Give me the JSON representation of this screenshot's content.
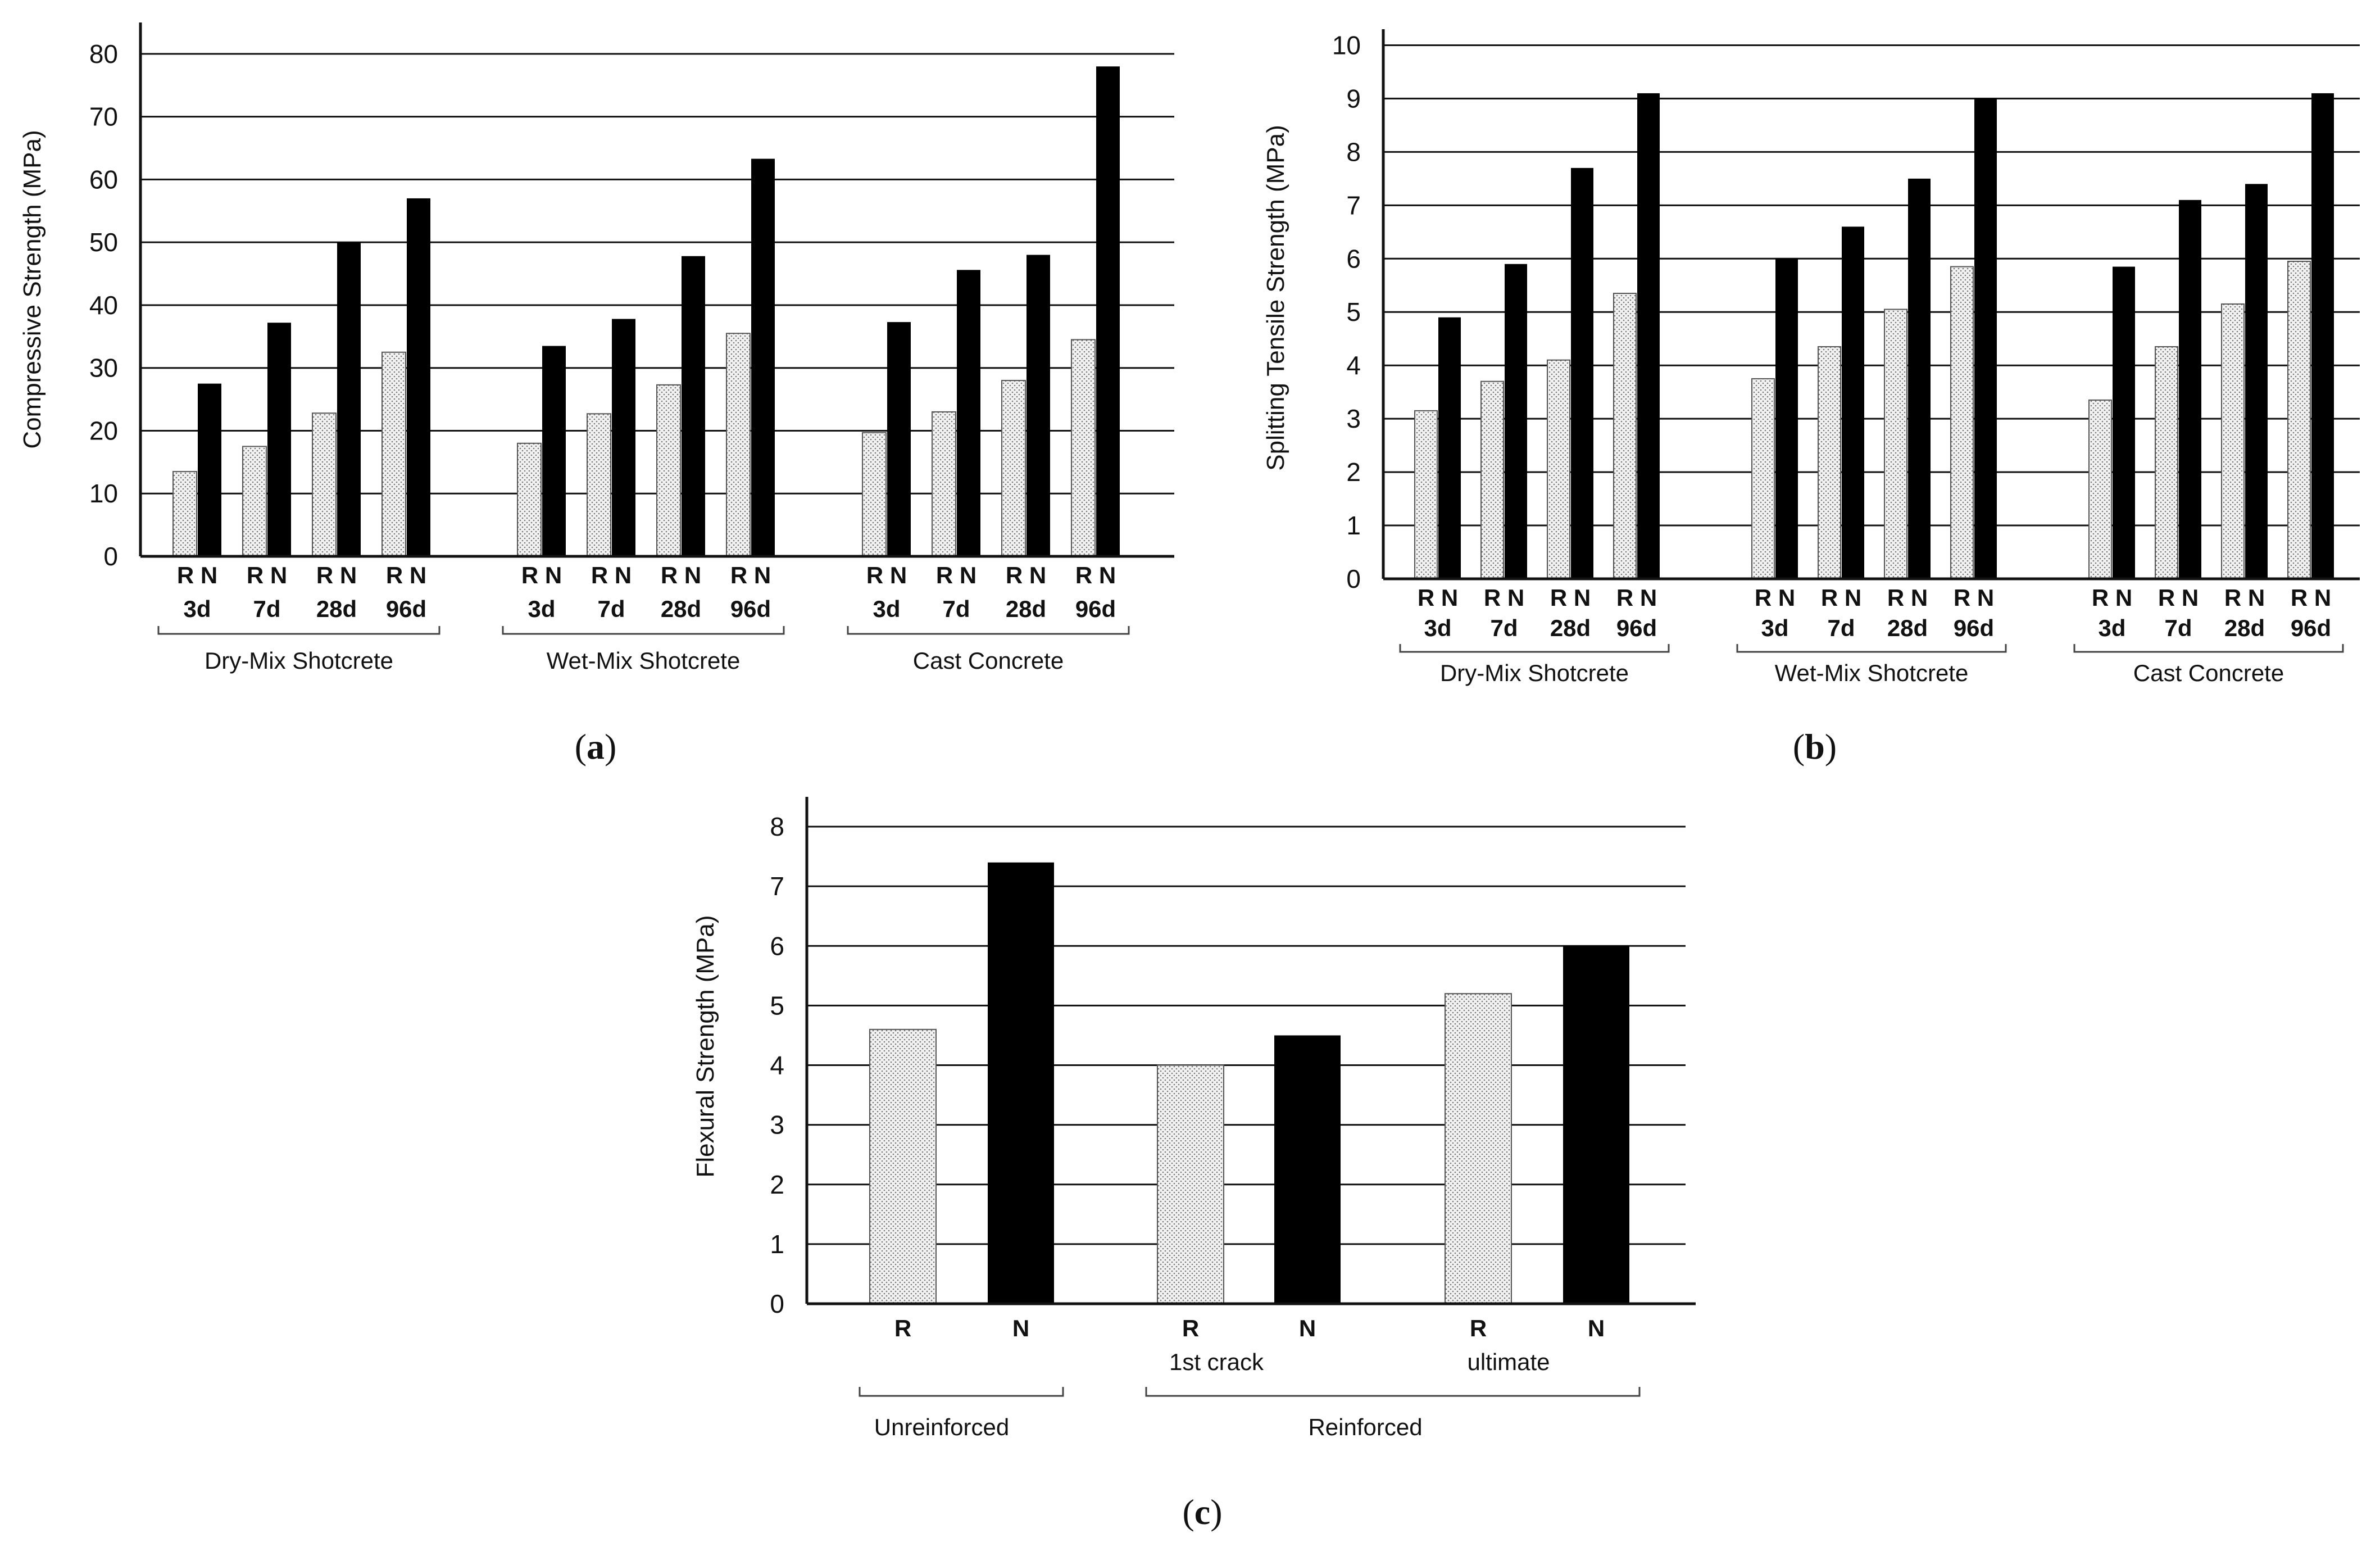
{
  "colors": {
    "R": "#d9d9d9",
    "N": "#000000",
    "axis": "#111111"
  },
  "chart_data": [
    {
      "type": "bar",
      "panel_label": "a",
      "ylabel": "Compressive Strength (MPa)",
      "xlabel": "",
      "ylim": [
        0,
        85
      ],
      "yticks": [
        0,
        10,
        20,
        30,
        40,
        50,
        60,
        70,
        80
      ],
      "ytick_labels": [
        "0",
        "10",
        "20",
        "30",
        "40",
        "50",
        "60",
        "70",
        "80"
      ],
      "legend": [],
      "groups": [
        {
          "name": "Dry-Mix Shotcrete",
          "categories": [
            {
              "label": "R N",
              "age": "3d",
              "R": 13.5,
              "N": 27.5
            },
            {
              "label": "R N",
              "age": "7d",
              "R": 17.5,
              "N": 37.2
            },
            {
              "label": "R N",
              "age": "28d",
              "R": 22.8,
              "N": 50
            },
            {
              "label": "R N",
              "age": "96d",
              "R": 32.5,
              "N": 57
            }
          ]
        },
        {
          "name": "Wet-Mix Shotcrete",
          "categories": [
            {
              "label": "R N",
              "age": "3d",
              "R": 18,
              "N": 33.5
            },
            {
              "label": "R N",
              "age": "7d",
              "R": 22.7,
              "N": 37.8
            },
            {
              "label": "R N",
              "age": "28d",
              "R": 27.3,
              "N": 47.8
            },
            {
              "label": "R N",
              "age": "96d",
              "R": 35.5,
              "N": 63.3
            }
          ]
        },
        {
          "name": "Cast Concrete",
          "categories": [
            {
              "label": "R N",
              "age": "3d",
              "R": 19.7,
              "N": 37.3
            },
            {
              "label": "R N",
              "age": "7d",
              "R": 23,
              "N": 45.6
            },
            {
              "label": "R N",
              "age": "28d",
              "R": 28,
              "N": 48
            },
            {
              "label": "R N",
              "age": "96d",
              "R": 34.5,
              "N": 78
            }
          ]
        }
      ]
    },
    {
      "type": "bar",
      "panel_label": "b",
      "ylabel": "Splitting Tensile Strength (MPa)",
      "xlabel": "",
      "ylim": [
        0,
        10.3
      ],
      "yticks": [
        0,
        1,
        2,
        3,
        4,
        5,
        6,
        7,
        8,
        9,
        10
      ],
      "ytick_labels": [
        "0",
        "1",
        "2",
        "3",
        "4",
        "5",
        "6",
        "7",
        "8",
        "9",
        "10"
      ],
      "legend": [],
      "groups": [
        {
          "name": "Dry-Mix Shotcrete",
          "categories": [
            {
              "label": "R N",
              "age": "3d",
              "R": 3.15,
              "N": 4.9
            },
            {
              "label": "R N",
              "age": "7d",
              "R": 3.7,
              "N": 5.9
            },
            {
              "label": "R N",
              "age": "28d",
              "R": 4.1,
              "N": 7.7
            },
            {
              "label": "R N",
              "age": "96d",
              "R": 5.35,
              "N": 9.1
            }
          ]
        },
        {
          "name": "Wet-Mix Shotcrete",
          "categories": [
            {
              "label": "R N",
              "age": "3d",
              "R": 3.75,
              "N": 6
            },
            {
              "label": "R N",
              "age": "7d",
              "R": 4.35,
              "N": 6.6
            },
            {
              "label": "R N",
              "age": "28d",
              "R": 5.05,
              "N": 7.5
            },
            {
              "label": "R N",
              "age": "96d",
              "R": 5.85,
              "N": 9
            }
          ]
        },
        {
          "name": "Cast Concrete",
          "categories": [
            {
              "label": "R N",
              "age": "3d",
              "R": 3.35,
              "N": 5.85
            },
            {
              "label": "R N",
              "age": "7d",
              "R": 4.35,
              "N": 7.1
            },
            {
              "label": "R N",
              "age": "28d",
              "R": 5.15,
              "N": 7.4
            },
            {
              "label": "R N",
              "age": "96d",
              "R": 5.95,
              "N": 9.1
            }
          ]
        }
      ]
    },
    {
      "type": "bar",
      "panel_label": "c",
      "ylabel": "Flexural Strength (MPa)",
      "xlabel": "",
      "ylim": [
        0,
        8.5
      ],
      "yticks": [
        0,
        1,
        2,
        3,
        4,
        5,
        6,
        7,
        8
      ],
      "ytick_labels": [
        "0",
        "1",
        "2",
        "3",
        "4",
        "5",
        "6",
        "7",
        "8"
      ],
      "legend": [],
      "bars": [
        {
          "label": "R",
          "series": "R",
          "value": 4.6
        },
        {
          "label": "N",
          "series": "N",
          "value": 7.4
        },
        {
          "label": "R",
          "series": "R",
          "value": 4.0
        },
        {
          "label": "N",
          "series": "N",
          "value": 4.5
        },
        {
          "label": "R",
          "series": "R",
          "value": 5.2
        },
        {
          "label": "N",
          "series": "N",
          "value": 6.0
        }
      ],
      "sublabels": [
        "1st crack",
        "ultimate"
      ],
      "groups": [
        "Unreinforced",
        "Reinforced"
      ]
    }
  ]
}
